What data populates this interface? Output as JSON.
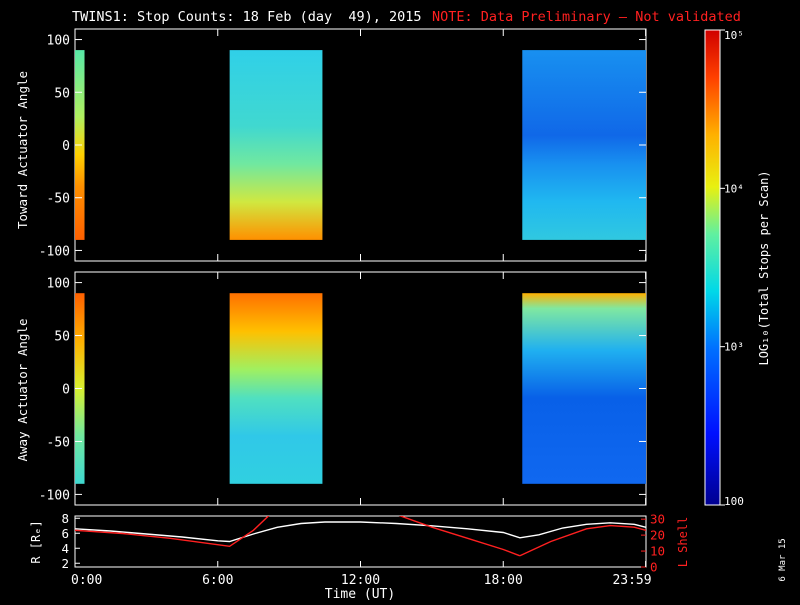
{
  "header": {
    "title": "TWINS1: Stop Counts: 18 Feb (day  49), 2015",
    "note": "NOTE: Data Preliminary – Not validated",
    "note_color": "#ff2020"
  },
  "side_date": "6 Mar 15",
  "chart_data": [
    {
      "type": "heatmap",
      "name": "toward-panel",
      "ylabel": "Toward Actuator Angle",
      "ylim": [
        -110,
        110
      ],
      "yticks": [
        100,
        50,
        0,
        -50,
        -100
      ],
      "xlim_hours": [
        0,
        24
      ],
      "data_y_range": [
        -90,
        90
      ],
      "blocks": [
        {
          "x0": 0.0,
          "x1": 0.4,
          "palette": "edge"
        },
        {
          "x0": 6.5,
          "x1": 10.4,
          "palette": "mid"
        },
        {
          "x0": 18.8,
          "x1": 24.0,
          "palette": "low"
        }
      ]
    },
    {
      "type": "heatmap",
      "name": "away-panel",
      "ylabel": "Away Actuator Angle",
      "ylim": [
        -110,
        110
      ],
      "yticks": [
        100,
        50,
        0,
        -50,
        -100
      ],
      "xlim_hours": [
        0,
        24
      ],
      "data_y_range": [
        -90,
        90
      ],
      "blocks": [
        {
          "x0": 0.0,
          "x1": 0.4,
          "palette": "edge"
        },
        {
          "x0": 6.5,
          "x1": 10.4,
          "palette": "mid"
        },
        {
          "x0": 18.8,
          "x1": 24.0,
          "palette": "low"
        }
      ]
    },
    {
      "type": "line",
      "name": "orbit-panel",
      "xlabel": "Time (UT)",
      "xticks": [
        {
          "h": 0,
          "label": "0:00"
        },
        {
          "h": 6,
          "label": "6:00"
        },
        {
          "h": 12,
          "label": "12:00"
        },
        {
          "h": 18,
          "label": "18:00"
        },
        {
          "h": 23.983,
          "label": "23:59"
        }
      ],
      "left_axis": {
        "label": "R [Rₑ]",
        "ylim": [
          1.5,
          8.3
        ],
        "ticks": [
          8,
          6,
          4,
          2
        ],
        "color": "#ffffff"
      },
      "right_axis": {
        "label": "L Shell",
        "ylim": [
          0,
          32
        ],
        "ticks": [
          30,
          20,
          10,
          0
        ],
        "color": "#ff2020"
      },
      "series": [
        {
          "axis": "left",
          "color": "#ffffff",
          "x": [
            0,
            1.5,
            3,
            4.5,
            6,
            6.5,
            7.5,
            8.5,
            9.5,
            10.5,
            12,
            13.5,
            15,
            16.5,
            18,
            18.7,
            19.5,
            20.5,
            21.5,
            22.5,
            23.5,
            24
          ],
          "y": [
            6.6,
            6.3,
            5.9,
            5.5,
            5.0,
            4.9,
            5.9,
            6.8,
            7.3,
            7.5,
            7.5,
            7.3,
            7.0,
            6.6,
            6.1,
            5.4,
            5.8,
            6.7,
            7.2,
            7.4,
            7.2,
            6.8
          ]
        },
        {
          "axis": "right",
          "color": "#ff2020",
          "segments": [
            {
              "x": [
                0,
                2,
                4,
                6.5,
                7.5,
                8.2
              ],
              "y": [
                23,
                21,
                18,
                13,
                23,
                33
              ]
            },
            {
              "x": [
                13.5,
                15,
                16.5,
                18,
                18.7
              ],
              "y": [
                33,
                25,
                18,
                11,
                7
              ]
            },
            {
              "x": [
                18.7,
                20,
                21.5,
                22.5,
                23.5,
                24
              ],
              "y": [
                7,
                16,
                24,
                26,
                25,
                23
              ]
            }
          ]
        }
      ]
    }
  ],
  "colorbar": {
    "label": "LOG₁₀(Total Stops per Scan)",
    "ticks": [
      {
        "value": 100000,
        "label": "10⁵"
      },
      {
        "value": 10000,
        "label": "10⁴"
      },
      {
        "value": 1000,
        "label": "10³"
      },
      {
        "value": 100,
        "label": "100"
      }
    ],
    "range_log": [
      2,
      5
    ]
  }
}
